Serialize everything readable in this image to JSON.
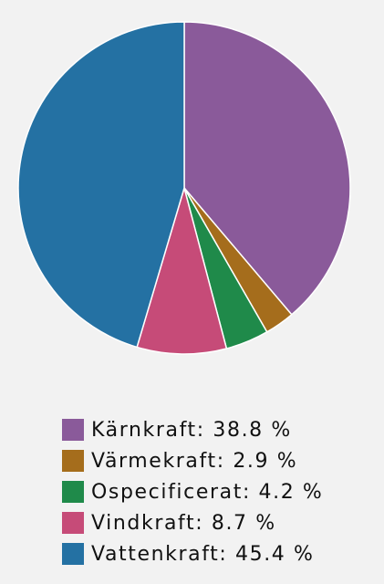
{
  "chart_data": {
    "type": "pie",
    "slices": [
      {
        "label": "Kärnkraft",
        "value": 38.8,
        "value_text": "38.8 %",
        "color": "#8a5a9a"
      },
      {
        "label": "Värmekraft",
        "value": 2.9,
        "value_text": "2.9 %",
        "color": "#a56d1c"
      },
      {
        "label": "Ospecificerat",
        "value": 4.2,
        "value_text": "4.2 %",
        "color": "#1f8a4a"
      },
      {
        "label": "Vindkraft",
        "value": 8.7,
        "value_text": "8.7 %",
        "color": "#c64b78"
      },
      {
        "label": "Vattenkraft",
        "value": 45.4,
        "value_text": "45.4 %",
        "color": "#2471a3"
      }
    ],
    "start_angle_deg": 0,
    "direction": "clockwise",
    "legend_position": "bottom"
  }
}
